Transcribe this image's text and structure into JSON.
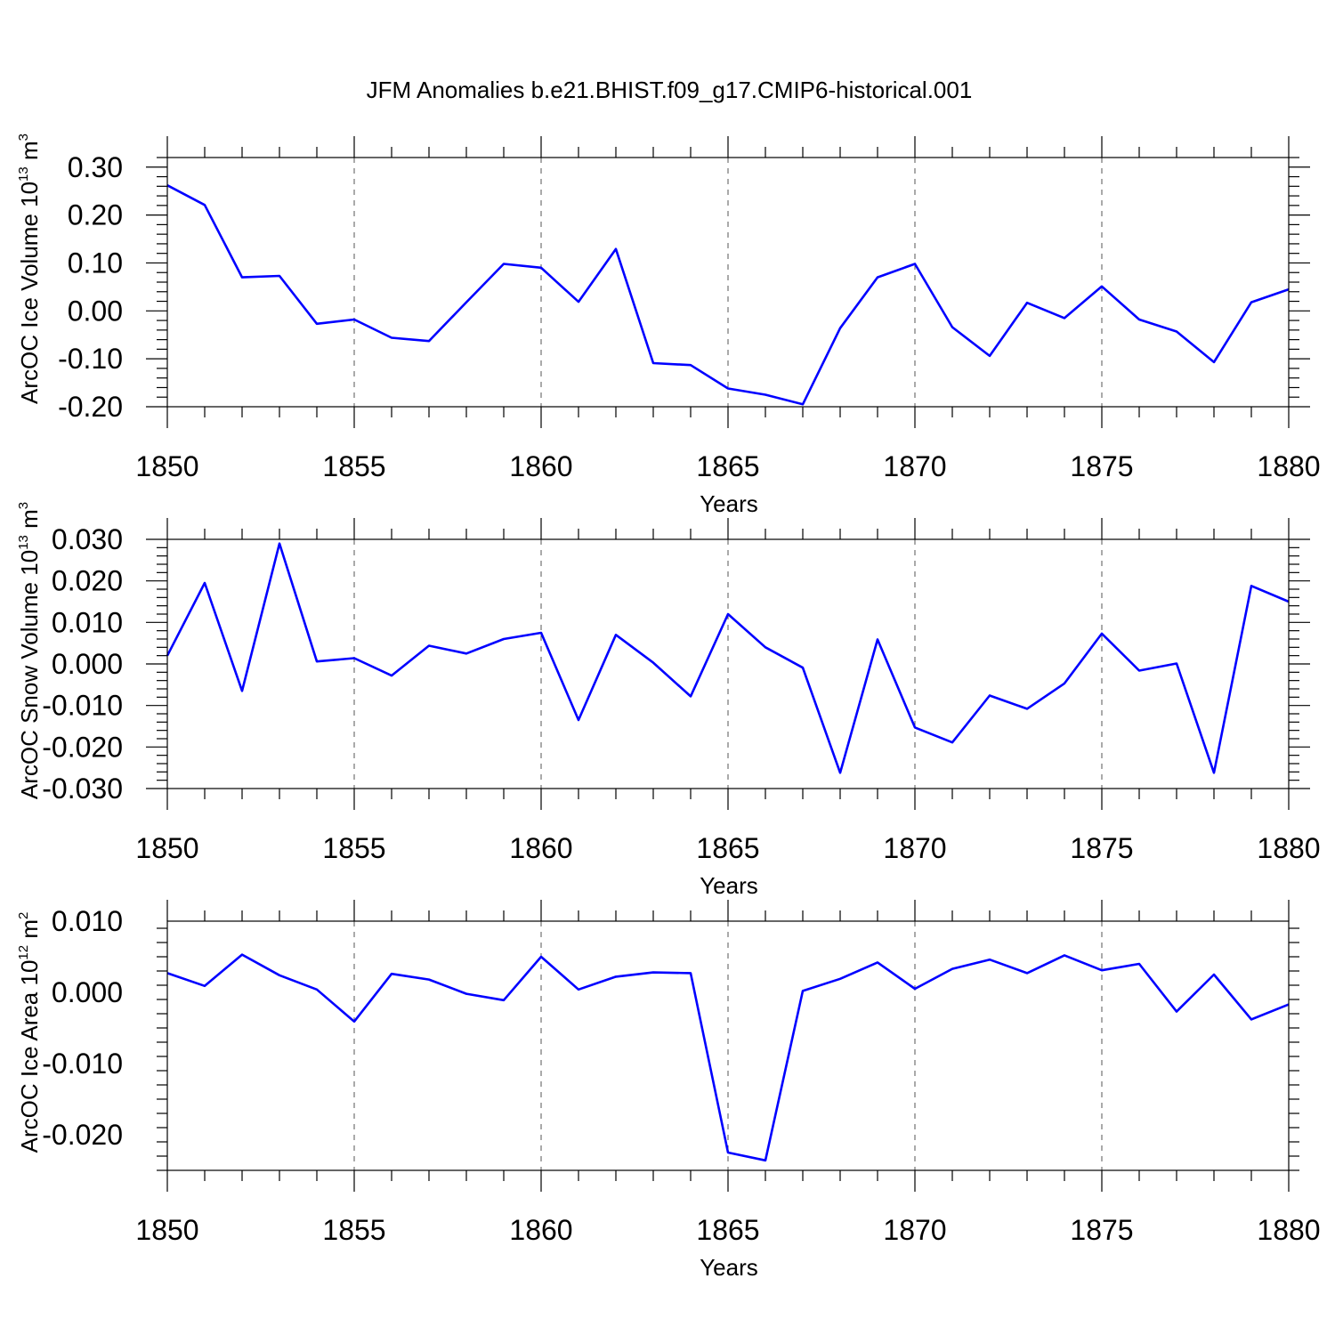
{
  "title": "JFM Anomalies b.e21.BHIST.f09_g17.CMIP6-historical.001",
  "chart_data": [
    {
      "type": "line",
      "ylabel": "ArcOC Ice Volume 10",
      "ylabel_exp": "13",
      "ylabel_unit": " m",
      "ylabel_unit_exp": "3",
      "xlabel": "Years",
      "xlim": [
        1850,
        1880
      ],
      "ylim": [
        -0.2,
        0.32
      ],
      "x_ticks": [
        "1850",
        "1855",
        "1860",
        "1865",
        "1870",
        "1875",
        "1880"
      ],
      "y_ticks": [
        "-0.20",
        "-0.10",
        "0.00",
        "0.10",
        "0.20",
        "0.30"
      ],
      "series": [
        {
          "name": "ArcOC Ice Volume",
          "x": [
            1850,
            1851,
            1852,
            1853,
            1854,
            1855,
            1856,
            1857,
            1858,
            1859,
            1860,
            1861,
            1862,
            1863,
            1864,
            1865,
            1866,
            1867,
            1868,
            1869,
            1870,
            1871,
            1872,
            1873,
            1874,
            1875,
            1876,
            1877,
            1878,
            1879,
            1880
          ],
          "values": [
            0.262,
            0.221,
            0.07,
            0.073,
            -0.027,
            -0.018,
            -0.056,
            -0.063,
            0.018,
            0.098,
            0.09,
            0.019,
            0.129,
            -0.109,
            -0.113,
            -0.162,
            -0.175,
            -0.195,
            -0.036,
            0.07,
            0.098,
            -0.034,
            -0.094,
            0.017,
            -0.015,
            0.051,
            -0.018,
            -0.043,
            -0.107,
            0.018,
            0.045
          ],
          "color": "#0000ff"
        }
      ]
    },
    {
      "type": "line",
      "ylabel": "ArcOC Snow Volume 10",
      "ylabel_exp": "13",
      "ylabel_unit": " m",
      "ylabel_unit_exp": "3",
      "xlabel": "Years",
      "xlim": [
        1850,
        1880
      ],
      "ylim": [
        -0.03,
        0.03
      ],
      "x_ticks": [
        "1850",
        "1855",
        "1860",
        "1865",
        "1870",
        "1875",
        "1880"
      ],
      "y_ticks": [
        "-0.030",
        "-0.020",
        "-0.010",
        "0.000",
        "0.010",
        "0.020",
        "0.030"
      ],
      "series": [
        {
          "name": "ArcOC Snow Volume",
          "x": [
            1850,
            1851,
            1852,
            1853,
            1854,
            1855,
            1856,
            1857,
            1858,
            1859,
            1860,
            1861,
            1862,
            1863,
            1864,
            1865,
            1866,
            1867,
            1868,
            1869,
            1870,
            1871,
            1872,
            1873,
            1874,
            1875,
            1876,
            1877,
            1878,
            1879,
            1880
          ],
          "values": [
            0.002,
            0.0195,
            -0.0065,
            0.029,
            0.0006,
            0.0014,
            -0.0028,
            0.0044,
            0.0025,
            0.006,
            0.0075,
            -0.0135,
            0.007,
            0.0003,
            -0.0078,
            0.012,
            0.004,
            -0.0009,
            -0.0262,
            0.0059,
            -0.0153,
            -0.0189,
            -0.0076,
            -0.0108,
            -0.0047,
            0.0073,
            -0.0016,
            0.0001,
            -0.0262,
            0.0188,
            0.015
          ],
          "color": "#0000ff"
        }
      ]
    },
    {
      "type": "line",
      "ylabel": "ArcOC Ice Area 10",
      "ylabel_exp": "12",
      "ylabel_unit": " m",
      "ylabel_unit_exp": "2",
      "xlabel": "Years",
      "xlim": [
        1850,
        1880
      ],
      "ylim": [
        -0.025,
        0.01
      ],
      "x_ticks": [
        "1850",
        "1855",
        "1860",
        "1865",
        "1870",
        "1875",
        "1880"
      ],
      "y_ticks": [
        "-0.020",
        "-0.010",
        "0.000",
        "0.010"
      ],
      "series": [
        {
          "name": "ArcOC Ice Area",
          "x": [
            1850,
            1851,
            1852,
            1853,
            1854,
            1855,
            1856,
            1857,
            1858,
            1859,
            1860,
            1861,
            1862,
            1863,
            1864,
            1865,
            1866,
            1867,
            1868,
            1869,
            1870,
            1871,
            1872,
            1873,
            1874,
            1875,
            1876,
            1877,
            1878,
            1879,
            1880
          ],
          "values": [
            0.0027,
            0.0009,
            0.0053,
            0.0024,
            0.0004,
            -0.0041,
            0.0026,
            0.0018,
            -0.0002,
            -0.0011,
            0.005,
            0.0004,
            0.0022,
            0.0028,
            0.0027,
            -0.0225,
            -0.0236,
            0.0002,
            0.0019,
            0.0042,
            0.0005,
            0.0033,
            0.0046,
            0.0027,
            0.0052,
            0.0031,
            0.004,
            -0.0027,
            0.0025,
            -0.0038,
            -0.0017
          ],
          "color": "#0000ff"
        }
      ]
    }
  ]
}
